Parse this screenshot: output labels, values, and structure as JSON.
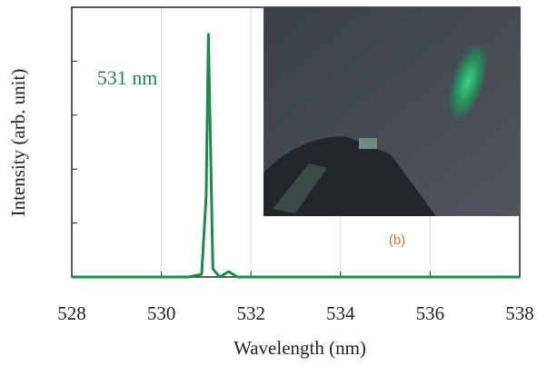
{
  "chart_data": {
    "type": "line",
    "x_label": "Wavelength (nm)",
    "y_label": "Intensity (arb. unit)",
    "annotation": "531 nm",
    "inset_label": "(b)",
    "xlim": [
      528,
      538
    ],
    "xticks": [
      528,
      530,
      532,
      534,
      536,
      538
    ],
    "ylim": [
      0,
      1
    ],
    "yticks": [
      0,
      0.2,
      0.4,
      0.6,
      0.8,
      1
    ],
    "grid": true,
    "series": [
      {
        "color": "#1e8a4c",
        "x": [
          528,
          530.6,
          530.9,
          531.0,
          531.05,
          531.15,
          531.3,
          531.5,
          531.7,
          538
        ],
        "values": [
          0,
          0,
          0.01,
          0.3,
          0.9,
          0.03,
          0,
          0.02,
          0,
          0
        ]
      }
    ]
  }
}
